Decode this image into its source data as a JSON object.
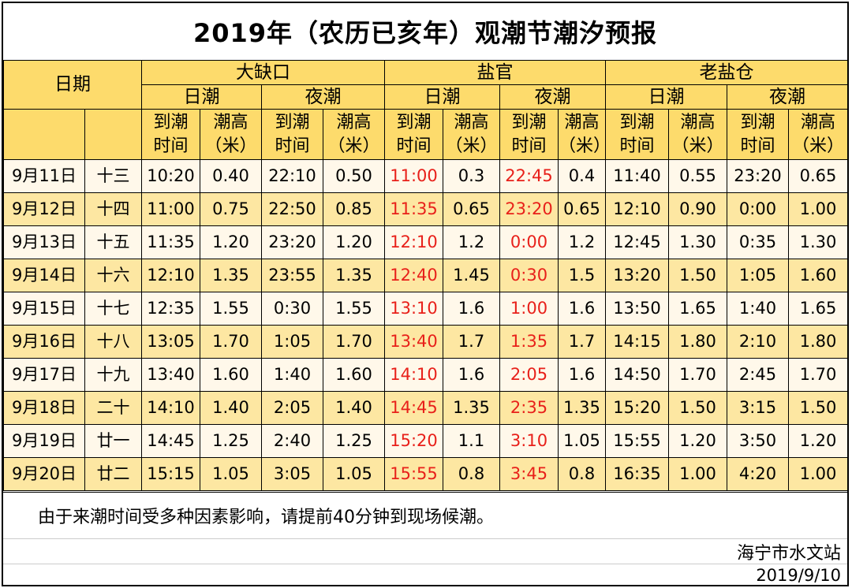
{
  "title": "2019年（农历已亥年）观潮节潮汐预报",
  "headers": {
    "date": "日期",
    "stations": [
      "大缺口",
      "盐官",
      "老盐仓"
    ],
    "day": "日潮",
    "night": "夜潮",
    "arrival_line1": "到潮",
    "arrival_line2": "时间",
    "height_line1": "潮高",
    "height_line2": "（米）"
  },
  "rows": [
    {
      "date": "9月11日",
      "lunar": "十三",
      "v": [
        "10:20",
        "0.40",
        "22:10",
        "0.50",
        "11:00",
        "0.3",
        "22:45",
        "0.4",
        "11:40",
        "0.55",
        "23:20",
        "0.65"
      ]
    },
    {
      "date": "9月12日",
      "lunar": "十四",
      "v": [
        "11:00",
        "0.75",
        "22:50",
        "0.85",
        "11:35",
        "0.65",
        "23:20",
        "0.65",
        "12:10",
        "0.90",
        "0:00",
        "1.00"
      ]
    },
    {
      "date": "9月13日",
      "lunar": "十五",
      "v": [
        "11:35",
        "1.20",
        "23:20",
        "1.20",
        "12:10",
        "1.2",
        "0:00",
        "1.2",
        "12:45",
        "1.30",
        "0:35",
        "1.30"
      ]
    },
    {
      "date": "9月14日",
      "lunar": "十六",
      "v": [
        "12:10",
        "1.35",
        "23:55",
        "1.35",
        "12:40",
        "1.45",
        "0:30",
        "1.5",
        "13:20",
        "1.50",
        "1:05",
        "1.60"
      ]
    },
    {
      "date": "9月15日",
      "lunar": "十七",
      "v": [
        "12:35",
        "1.55",
        "0:30",
        "1.55",
        "13:10",
        "1.6",
        "1:00",
        "1.6",
        "13:50",
        "1.65",
        "1:40",
        "1.65"
      ]
    },
    {
      "date": "9月16日",
      "lunar": "十八",
      "v": [
        "13:05",
        "1.70",
        "1:05",
        "1.70",
        "13:40",
        "1.7",
        "1:35",
        "1.7",
        "14:15",
        "1.80",
        "2:10",
        "1.80"
      ]
    },
    {
      "date": "9月17日",
      "lunar": "十九",
      "v": [
        "13:40",
        "1.60",
        "1:40",
        "1.60",
        "14:10",
        "1.6",
        "2:05",
        "1.6",
        "14:50",
        "1.70",
        "2:45",
        "1.70"
      ]
    },
    {
      "date": "9月18日",
      "lunar": "二十",
      "v": [
        "14:10",
        "1.40",
        "2:05",
        "1.40",
        "14:45",
        "1.35",
        "2:35",
        "1.35",
        "15:20",
        "1.50",
        "3:15",
        "1.50"
      ]
    },
    {
      "date": "9月19日",
      "lunar": "廿一",
      "v": [
        "14:45",
        "1.25",
        "2:40",
        "1.25",
        "15:20",
        "1.1",
        "3:10",
        "1.05",
        "15:55",
        "1.20",
        "3:50",
        "1.20"
      ]
    },
    {
      "date": "9月20日",
      "lunar": "廿二",
      "v": [
        "15:15",
        "1.05",
        "3:05",
        "1.05",
        "15:55",
        "0.8",
        "3:45",
        "0.8",
        "16:35",
        "1.00",
        "4:20",
        "1.00"
      ]
    }
  ],
  "colors": {
    "header_bg": "#fddb6c",
    "row_light": "#fff8ea",
    "row_dark": "#fde7a2",
    "highlight_time": "#e8201a"
  },
  "note": "由于来潮时间受多种因素影响，请提前40分钟到现场候潮。",
  "organization": "海宁市水文站",
  "publish_date": "2019/9/10"
}
